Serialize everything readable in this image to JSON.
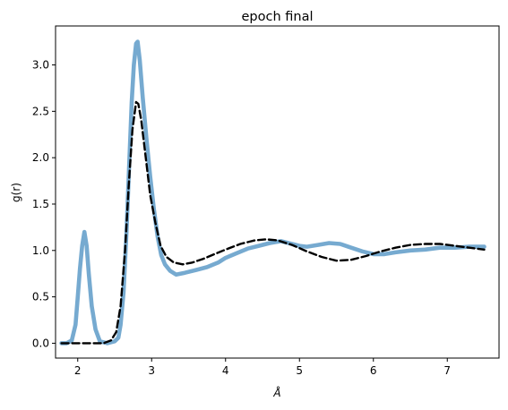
{
  "chart_data": {
    "type": "line",
    "title": "epoch final",
    "xlabel": "Å",
    "ylabel": "g(r)",
    "xlim": [
      1.7,
      7.7
    ],
    "ylim": [
      -0.16,
      3.42
    ],
    "x_ticks": [
      2,
      3,
      4,
      5,
      6,
      7
    ],
    "y_ticks": [
      "0.0",
      "0.5",
      "1.0",
      "1.5",
      "2.0",
      "2.5",
      "3.0"
    ],
    "grid": false,
    "series": [
      {
        "color": "#76aad0",
        "style": "solid",
        "points": [
          [
            1.78,
            0.0
          ],
          [
            1.85,
            0.0
          ],
          [
            1.92,
            0.03
          ],
          [
            1.97,
            0.2
          ],
          [
            2.0,
            0.5
          ],
          [
            2.03,
            0.8
          ],
          [
            2.06,
            1.05
          ],
          [
            2.09,
            1.2
          ],
          [
            2.12,
            1.05
          ],
          [
            2.15,
            0.75
          ],
          [
            2.19,
            0.4
          ],
          [
            2.24,
            0.15
          ],
          [
            2.3,
            0.02
          ],
          [
            2.4,
            0.0
          ],
          [
            2.5,
            0.02
          ],
          [
            2.55,
            0.06
          ],
          [
            2.58,
            0.2
          ],
          [
            2.62,
            0.55
          ],
          [
            2.66,
            1.2
          ],
          [
            2.7,
            2.0
          ],
          [
            2.73,
            2.6
          ],
          [
            2.76,
            3.0
          ],
          [
            2.79,
            3.23
          ],
          [
            2.81,
            3.25
          ],
          [
            2.84,
            3.05
          ],
          [
            2.88,
            2.65
          ],
          [
            2.93,
            2.2
          ],
          [
            2.98,
            1.8
          ],
          [
            3.03,
            1.45
          ],
          [
            3.08,
            1.15
          ],
          [
            3.13,
            0.95
          ],
          [
            3.18,
            0.85
          ],
          [
            3.25,
            0.78
          ],
          [
            3.33,
            0.74
          ],
          [
            3.45,
            0.76
          ],
          [
            3.6,
            0.79
          ],
          [
            3.75,
            0.82
          ],
          [
            3.9,
            0.87
          ],
          [
            4.0,
            0.92
          ],
          [
            4.15,
            0.97
          ],
          [
            4.3,
            1.02
          ],
          [
            4.45,
            1.05
          ],
          [
            4.6,
            1.08
          ],
          [
            4.75,
            1.1
          ],
          [
            4.85,
            1.08
          ],
          [
            5.0,
            1.05
          ],
          [
            5.1,
            1.04
          ],
          [
            5.25,
            1.06
          ],
          [
            5.4,
            1.08
          ],
          [
            5.55,
            1.07
          ],
          [
            5.7,
            1.03
          ],
          [
            5.85,
            0.99
          ],
          [
            6.0,
            0.96
          ],
          [
            6.15,
            0.96
          ],
          [
            6.3,
            0.98
          ],
          [
            6.5,
            1.0
          ],
          [
            6.7,
            1.01
          ],
          [
            6.9,
            1.03
          ],
          [
            7.1,
            1.03
          ],
          [
            7.3,
            1.04
          ],
          [
            7.5,
            1.04
          ]
        ]
      },
      {
        "color": "#000000",
        "style": "dashed",
        "points": [
          [
            1.78,
            0.0
          ],
          [
            2.0,
            0.0
          ],
          [
            2.2,
            0.0
          ],
          [
            2.35,
            0.0
          ],
          [
            2.45,
            0.03
          ],
          [
            2.52,
            0.12
          ],
          [
            2.58,
            0.4
          ],
          [
            2.64,
            1.0
          ],
          [
            2.69,
            1.7
          ],
          [
            2.74,
            2.3
          ],
          [
            2.79,
            2.6
          ],
          [
            2.82,
            2.58
          ],
          [
            2.86,
            2.4
          ],
          [
            2.92,
            2.0
          ],
          [
            2.98,
            1.6
          ],
          [
            3.05,
            1.3
          ],
          [
            3.12,
            1.05
          ],
          [
            3.2,
            0.93
          ],
          [
            3.3,
            0.87
          ],
          [
            3.42,
            0.85
          ],
          [
            3.55,
            0.87
          ],
          [
            3.7,
            0.91
          ],
          [
            3.85,
            0.96
          ],
          [
            4.0,
            1.01
          ],
          [
            4.2,
            1.07
          ],
          [
            4.4,
            1.11
          ],
          [
            4.55,
            1.12
          ],
          [
            4.7,
            1.11
          ],
          [
            4.9,
            1.06
          ],
          [
            5.1,
            0.99
          ],
          [
            5.3,
            0.93
          ],
          [
            5.5,
            0.89
          ],
          [
            5.7,
            0.9
          ],
          [
            5.9,
            0.94
          ],
          [
            6.1,
            0.99
          ],
          [
            6.3,
            1.03
          ],
          [
            6.5,
            1.06
          ],
          [
            6.7,
            1.07
          ],
          [
            6.9,
            1.07
          ],
          [
            7.1,
            1.05
          ],
          [
            7.3,
            1.03
          ],
          [
            7.5,
            1.01
          ]
        ]
      }
    ]
  }
}
